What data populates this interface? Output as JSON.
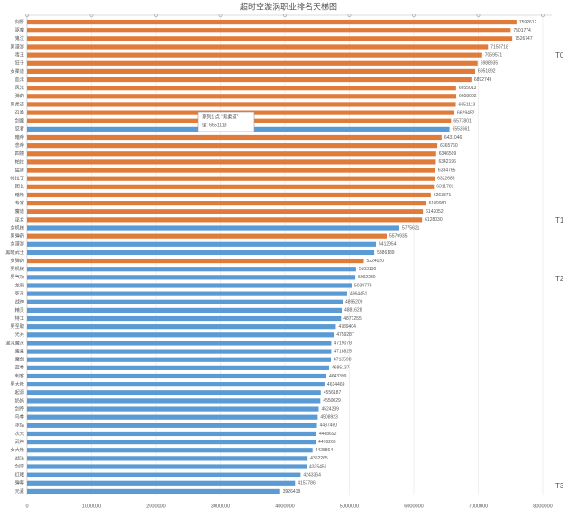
{
  "chart_data": {
    "type": "bar",
    "orientation": "horizontal",
    "title": "超时空漩涡职业排名天梯图",
    "categories": [
      "剑影",
      "驱魔",
      "鬼泣",
      "男漫游",
      "毒王",
      "狂子",
      "女柔道",
      "血法",
      "风法",
      "弹药",
      "男柔道",
      "召唤",
      "剑魔",
      "忍者",
      "暗帝",
      "念帝",
      "四姨",
      "帕拉",
      "猛兽",
      "帕拉丁",
      "团长",
      "暗枪",
      "专家",
      "魔道",
      "巫女",
      "女机械",
      "男弹药",
      "女漫游",
      "黑暗武士",
      "女弹药",
      "男机械",
      "男气功",
      "龙骑",
      "死灵",
      "战神",
      "精灵",
      "特工",
      "男圣职",
      "光兵",
      "混沌魔灵",
      "魔皇",
      "魔剑",
      "蓝拳",
      "刺客",
      "男大枪",
      "起源",
      "奶妈",
      "剑帝",
      "鸟拳",
      "冰结",
      "次元",
      "武神",
      "女大枪",
      "战法",
      "剑宗",
      "红眼",
      "弹幕",
      "元素"
    ],
    "values": [
      7592612,
      7501774,
      7526747,
      7150718,
      7059571,
      6988935,
      6951892,
      6892749,
      6655013,
      6658002,
      6651113,
      6629452,
      6577801,
      6553661,
      6431046,
      6365760,
      6346509,
      6342196,
      6334765,
      6322688,
      6311781,
      6263871,
      6189980,
      6142052,
      6128030,
      5775621,
      5579935,
      5412954,
      5386189,
      5224020,
      5103130,
      5092280,
      5034779,
      4964451,
      4895209,
      4881628,
      4871255,
      4789404,
      4759287,
      4719078,
      4718825,
      4713598,
      4685137,
      4643399,
      4614469,
      4556187,
      4550029,
      4524239,
      4508923,
      4497460,
      4488692,
      4476263,
      4428864,
      4352265,
      4335451,
      4243364,
      4157786,
      3926418
    ],
    "colors": [
      "#e07b39",
      "#e07b39",
      "#e07b39",
      "#e07b39",
      "#e07b39",
      "#e07b39",
      "#e07b39",
      "#e07b39",
      "#e07b39",
      "#e07b39",
      "#e07b39",
      "#e07b39",
      "#e07b39",
      "#5a9bd5",
      "#e07b39",
      "#e07b39",
      "#e07b39",
      "#e07b39",
      "#e07b39",
      "#e07b39",
      "#e07b39",
      "#e07b39",
      "#e07b39",
      "#e07b39",
      "#e07b39",
      "#5a9bd5",
      "#e07b39",
      "#5a9bd5",
      "#5a9bd5",
      "#e07b39",
      "#5a9bd5",
      "#5a9bd5",
      "#5a9bd5",
      "#5a9bd5",
      "#5a9bd5",
      "#5a9bd5",
      "#5a9bd5",
      "#5a9bd5",
      "#5a9bd5",
      "#5a9bd5",
      "#5a9bd5",
      "#5a9bd5",
      "#5a9bd5",
      "#5a9bd5",
      "#5a9bd5",
      "#5a9bd5",
      "#5a9bd5",
      "#5a9bd5",
      "#5a9bd5",
      "#5a9bd5",
      "#5a9bd5",
      "#5a9bd5",
      "#5a9bd5",
      "#5a9bd5",
      "#5a9bd5",
      "#5a9bd5",
      "#5a9bd5",
      "#5a9bd5"
    ],
    "xlim": [
      0,
      8000000
    ],
    "xticks": [
      0,
      1000000,
      2000000,
      3000000,
      4000000,
      5000000,
      6000000,
      7000000,
      8000000
    ],
    "grid": true,
    "tiers": [
      "T0",
      "T1",
      "T2",
      "T3"
    ],
    "tooltip": [
      "系列1 点 “男柔道”",
      "值: 6651113"
    ]
  }
}
